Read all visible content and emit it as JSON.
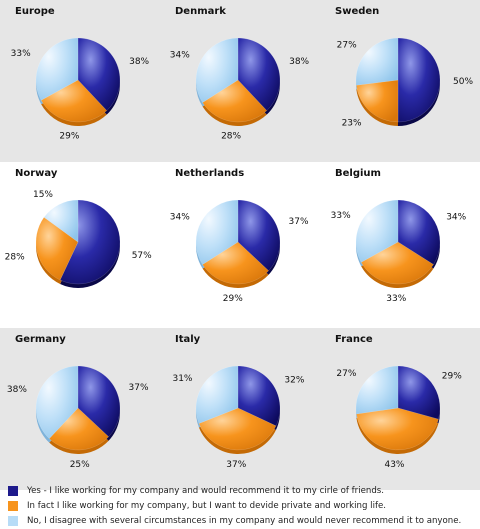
{
  "chart_data": {
    "type": "pie",
    "colors": {
      "yes": "#1e1a8c",
      "in_fact": "#f7941d",
      "no": "#b7dcf7"
    },
    "legend": [
      "Yes - I like working for my company and would recommend it to my cirle of friends.",
      "In fact I like working for my company, but I want to devide private and working life.",
      "No, I disagree with several circumstances in my company and would never recommend it to anyone."
    ],
    "panels": [
      {
        "title": "Europe",
        "values": [
          38,
          29,
          33
        ]
      },
      {
        "title": "Denmark",
        "values": [
          38,
          28,
          34
        ]
      },
      {
        "title": "Sweden",
        "values": [
          50,
          23,
          27
        ]
      },
      {
        "title": "Norway",
        "values": [
          57,
          28,
          15
        ]
      },
      {
        "title": "Netherlands",
        "values": [
          37,
          29,
          34
        ]
      },
      {
        "title": "Belgium",
        "values": [
          34,
          33,
          33
        ]
      },
      {
        "title": "Germany",
        "values": [
          37,
          25,
          38
        ]
      },
      {
        "title": "Italy",
        "values": [
          32,
          37,
          31
        ]
      },
      {
        "title": "France",
        "values": [
          29,
          43,
          27
        ]
      }
    ]
  }
}
